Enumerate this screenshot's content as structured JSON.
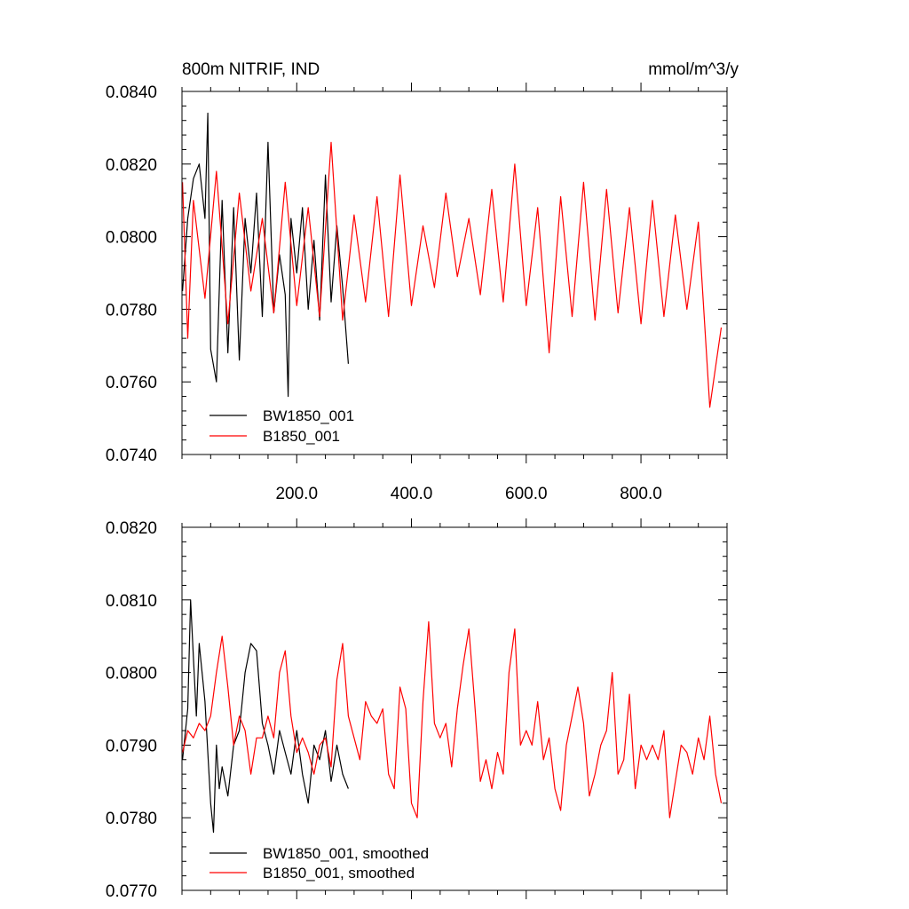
{
  "page": {
    "title_left": "800m NITRIF, IND",
    "title_right": "mmol/m^3/y"
  },
  "colors": {
    "series_a": "#000000",
    "series_b": "#ff0000"
  },
  "chart_data": [
    {
      "type": "line",
      "title": "800m NITRIF, IND",
      "units": "mmol/m^3/y",
      "xlim": [
        0,
        950
      ],
      "ylim": [
        0.074,
        0.084
      ],
      "x_ticks": [
        200,
        400,
        600,
        800
      ],
      "x_tick_labels": [
        "200.0",
        "400.0",
        "600.0",
        "800.0"
      ],
      "y_ticks": [
        0.074,
        0.076,
        0.078,
        0.08,
        0.082,
        0.084
      ],
      "y_tick_labels": [
        "0.0740",
        "0.0760",
        "0.0780",
        "0.0800",
        "0.0820",
        "0.0840"
      ],
      "legend_position": "bottom-left",
      "series": [
        {
          "name": "BW1850_001",
          "color": "#000000",
          "x": [
            1,
            10,
            20,
            30,
            40,
            45,
            50,
            60,
            70,
            80,
            90,
            100,
            110,
            120,
            130,
            140,
            150,
            160,
            170,
            180,
            185,
            190,
            200,
            210,
            220,
            230,
            240,
            250,
            260,
            270,
            280,
            290
          ],
          "y": [
            0.0785,
            0.0805,
            0.0816,
            0.082,
            0.0805,
            0.0834,
            0.0769,
            0.076,
            0.081,
            0.0768,
            0.0808,
            0.0766,
            0.0805,
            0.079,
            0.0812,
            0.0778,
            0.0826,
            0.0779,
            0.0795,
            0.0784,
            0.0756,
            0.0805,
            0.079,
            0.0808,
            0.078,
            0.0799,
            0.0777,
            0.0817,
            0.0782,
            0.0803,
            0.0786,
            0.0765
          ]
        },
        {
          "name": "B1850_001",
          "color": "#ff0000",
          "x": [
            1,
            10,
            20,
            40,
            60,
            80,
            100,
            120,
            140,
            160,
            180,
            200,
            220,
            240,
            260,
            280,
            300,
            320,
            340,
            360,
            380,
            400,
            420,
            440,
            460,
            480,
            500,
            520,
            540,
            560,
            580,
            600,
            620,
            640,
            660,
            680,
            700,
            720,
            740,
            760,
            780,
            800,
            820,
            840,
            860,
            880,
            900,
            920,
            940
          ],
          "y": [
            0.0815,
            0.0772,
            0.081,
            0.0783,
            0.0818,
            0.0776,
            0.0812,
            0.0785,
            0.0805,
            0.0779,
            0.0815,
            0.0781,
            0.0808,
            0.0778,
            0.0826,
            0.0777,
            0.0806,
            0.0782,
            0.0811,
            0.0778,
            0.0817,
            0.0781,
            0.0803,
            0.0786,
            0.0812,
            0.0789,
            0.0805,
            0.0784,
            0.0813,
            0.0782,
            0.082,
            0.0781,
            0.0808,
            0.0768,
            0.0811,
            0.0778,
            0.0815,
            0.0777,
            0.0813,
            0.0779,
            0.0808,
            0.0776,
            0.081,
            0.0778,
            0.0806,
            0.078,
            0.0804,
            0.0753,
            0.0775
          ]
        }
      ]
    },
    {
      "type": "line",
      "xlim": [
        0,
        950
      ],
      "ylim": [
        0.077,
        0.082
      ],
      "y_ticks": [
        0.077,
        0.078,
        0.079,
        0.08,
        0.081,
        0.082
      ],
      "y_tick_labels": [
        "0.0770",
        "0.0780",
        "0.0790",
        "0.0800",
        "0.0810",
        "0.0820"
      ],
      "legend_position": "bottom-left",
      "series": [
        {
          "name": "BW1850_001, smoothed",
          "color": "#000000",
          "x": [
            1,
            10,
            15,
            20,
            25,
            30,
            40,
            50,
            55,
            60,
            65,
            70,
            80,
            90,
            100,
            110,
            120,
            130,
            140,
            150,
            160,
            170,
            180,
            190,
            200,
            210,
            220,
            230,
            240,
            250,
            260,
            270,
            280,
            290
          ],
          "y": [
            0.0788,
            0.0795,
            0.081,
            0.0802,
            0.0794,
            0.0804,
            0.0796,
            0.0782,
            0.0778,
            0.079,
            0.0784,
            0.0787,
            0.0783,
            0.079,
            0.0792,
            0.08,
            0.0804,
            0.0803,
            0.0793,
            0.079,
            0.0786,
            0.0792,
            0.0789,
            0.0786,
            0.0792,
            0.0786,
            0.0782,
            0.079,
            0.0788,
            0.0792,
            0.0785,
            0.079,
            0.0786,
            0.0784
          ]
        },
        {
          "name": "B1850_001, smoothed",
          "color": "#ff0000",
          "x": [
            1,
            10,
            20,
            30,
            40,
            50,
            60,
            70,
            80,
            90,
            100,
            110,
            120,
            130,
            140,
            150,
            160,
            170,
            180,
            190,
            200,
            210,
            220,
            230,
            240,
            250,
            260,
            270,
            280,
            290,
            300,
            310,
            320,
            330,
            340,
            350,
            360,
            370,
            380,
            390,
            400,
            410,
            420,
            430,
            440,
            450,
            460,
            470,
            480,
            490,
            500,
            510,
            520,
            530,
            540,
            550,
            560,
            570,
            580,
            590,
            600,
            610,
            620,
            630,
            640,
            650,
            660,
            670,
            680,
            690,
            700,
            710,
            720,
            730,
            740,
            750,
            760,
            770,
            780,
            790,
            800,
            810,
            820,
            830,
            840,
            850,
            860,
            870,
            880,
            890,
            900,
            910,
            920,
            930,
            940
          ],
          "y": [
            0.0789,
            0.0792,
            0.0791,
            0.0793,
            0.0792,
            0.0794,
            0.08,
            0.0805,
            0.0798,
            0.079,
            0.0794,
            0.0792,
            0.0786,
            0.0791,
            0.0791,
            0.0794,
            0.0791,
            0.08,
            0.0803,
            0.0794,
            0.0789,
            0.0791,
            0.0789,
            0.0786,
            0.079,
            0.0791,
            0.0787,
            0.0799,
            0.0804,
            0.0794,
            0.0791,
            0.0788,
            0.0796,
            0.0794,
            0.0793,
            0.0795,
            0.0786,
            0.0784,
            0.0798,
            0.0795,
            0.0782,
            0.078,
            0.0796,
            0.0807,
            0.0793,
            0.0791,
            0.0793,
            0.0787,
            0.0795,
            0.0801,
            0.0806,
            0.0796,
            0.0785,
            0.0788,
            0.0784,
            0.0789,
            0.0786,
            0.08,
            0.0806,
            0.079,
            0.0792,
            0.079,
            0.0796,
            0.0788,
            0.0791,
            0.0784,
            0.0781,
            0.079,
            0.0794,
            0.0798,
            0.0793,
            0.0783,
            0.0786,
            0.079,
            0.0792,
            0.08,
            0.0786,
            0.0788,
            0.0797,
            0.0784,
            0.079,
            0.0788,
            0.079,
            0.0788,
            0.0792,
            0.078,
            0.0785,
            0.079,
            0.0789,
            0.0786,
            0.0791,
            0.0788,
            0.0794,
            0.0786,
            0.0782
          ]
        }
      ]
    }
  ]
}
